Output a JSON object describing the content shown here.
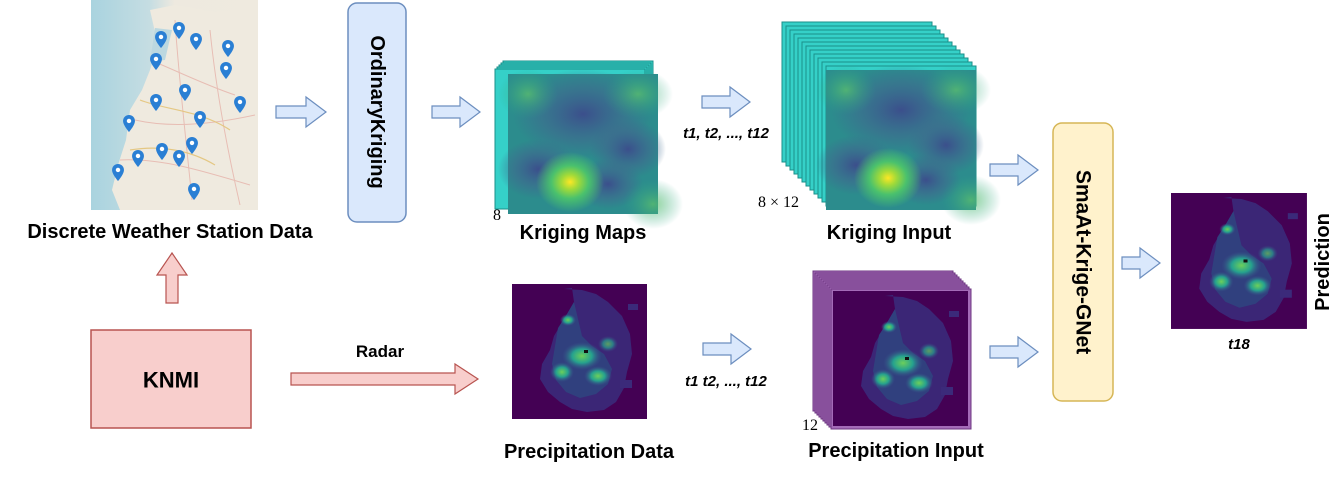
{
  "labels": {
    "weather_station": "Discrete Weather Station Data",
    "ordinary_kriging": "OrdinaryKriging",
    "kriging_maps": "Kriging Maps",
    "kriging_maps_count": "8",
    "kriging_time": "t1, t2, ..., t12",
    "kriging_input": "Kriging Input",
    "kriging_input_count": "8 × 12",
    "model": "SmaAt-Krige-GNet",
    "prediction": "Prediction",
    "prediction_time": "t18",
    "knmi": "KNMI",
    "radar": "Radar",
    "precip_data": "Precipitation Data",
    "precip_time": "t1 t2, ..., t12",
    "precip_input": "Precipitation Input",
    "precip_input_count": "12"
  },
  "colors": {
    "blue_box_fill": "#dae8fc",
    "blue_box_stroke": "#6c8ebf",
    "yellow_box_fill": "#fff2cc",
    "yellow_box_stroke": "#d6b656",
    "red_box_fill": "#f8cecc",
    "red_box_stroke": "#b85450",
    "viridis_dark": "#440154",
    "stack_teal": "#35d0c8",
    "stack_purple": "#a46bb8"
  }
}
